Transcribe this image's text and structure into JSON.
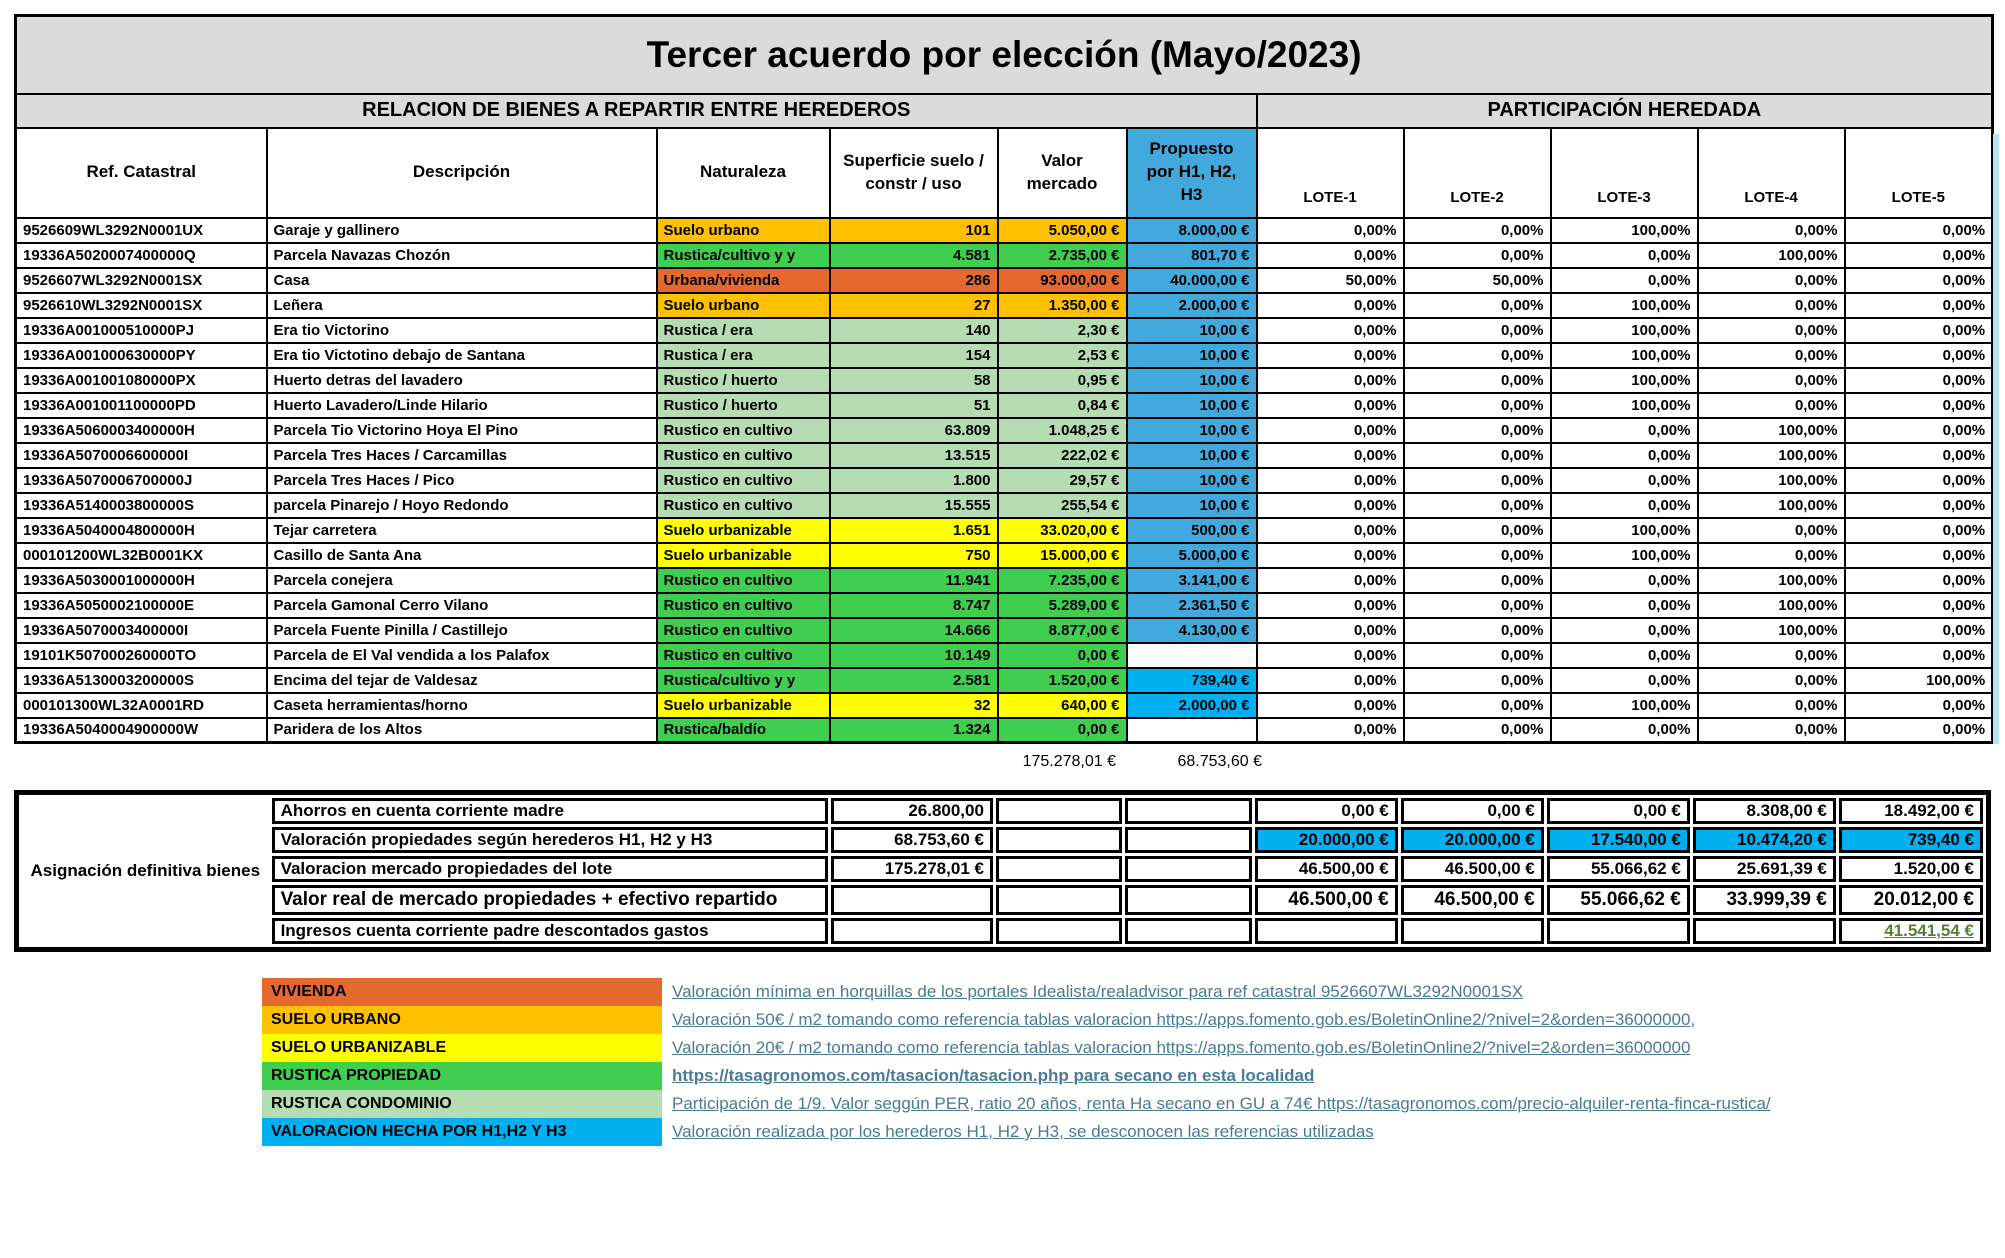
{
  "title": "Tercer acuerdo por elección (Mayo/2023)",
  "sections": {
    "left": "RELACION DE BIENES A REPARTIR ENTRE HEREDEROS",
    "right": "PARTICIPACIÓN HEREDADA"
  },
  "colors": {
    "header_gray": "#dbdbdb",
    "gold": "#ffc000",
    "vivienda": "#e5692e",
    "yellow": "#ffff00",
    "green": "#3fce50",
    "lightgreen": "#b5dcb3",
    "blue": "#41a9dc",
    "brightblue": "#00b0f0",
    "link": "#4a7b94",
    "money_green": "#548235"
  },
  "table": {
    "headers": {
      "ref": "Ref. Catastral",
      "desc": "Descripción",
      "nat": "Naturaleza",
      "sup": "Superficie suelo / constr / uso",
      "valor": "Valor mercado",
      "prop": "Propuesto por H1, H2, H3"
    },
    "lote_headers": [
      "LOTE-1",
      "LOTE-2",
      "LOTE-3",
      "LOTE-4",
      "LOTE-5"
    ],
    "rows": [
      {
        "ref": "9526609WL3292N0001UX",
        "desc": "Garaje y gallinero",
        "nat": "Suelo urbano",
        "color": "gold",
        "sup": "101",
        "valor": "5.050,00 €",
        "prop": "8.000,00 €",
        "prop_style": "blue",
        "lotes": [
          "0,00%",
          "0,00%",
          "100,00%",
          "0,00%",
          "0,00%"
        ]
      },
      {
        "ref": "19336A5020007400000Q",
        "desc": "Parcela Navazas Chozón",
        "nat": "Rustica/cultivo y y",
        "color": "green",
        "sup": "4.581",
        "valor": "2.735,00 €",
        "prop": "801,70 €",
        "prop_style": "blue",
        "lotes": [
          "0,00%",
          "0,00%",
          "0,00%",
          "100,00%",
          "0,00%"
        ]
      },
      {
        "ref": "9526607WL3292N0001SX",
        "desc": "Casa",
        "nat": "Urbana/vivienda",
        "color": "vivienda",
        "sup": "286",
        "valor": "93.000,00 €",
        "prop": "40.000,00 €",
        "prop_style": "blue",
        "lotes": [
          "50,00%",
          "50,00%",
          "0,00%",
          "0,00%",
          "0,00%"
        ]
      },
      {
        "ref": "9526610WL3292N0001SX",
        "desc": "Leñera",
        "nat": "Suelo urbano",
        "color": "gold",
        "sup": "27",
        "valor": "1.350,00 €",
        "prop": "2.000,00 €",
        "prop_style": "blue",
        "lotes": [
          "0,00%",
          "0,00%",
          "100,00%",
          "0,00%",
          "0,00%"
        ]
      },
      {
        "ref": "19336A001000510000PJ",
        "desc": "Era tio Victorino",
        "nat": "Rustica / era",
        "color": "lightgreen",
        "sup": "140",
        "valor": "2,30 €",
        "prop": "10,00 €",
        "prop_style": "blue",
        "lotes": [
          "0,00%",
          "0,00%",
          "100,00%",
          "0,00%",
          "0,00%"
        ]
      },
      {
        "ref": "19336A001000630000PY",
        "desc": "Era tio Victotino debajo de Santana",
        "nat": "Rustica / era",
        "color": "lightgreen",
        "sup": "154",
        "valor": "2,53 €",
        "prop": "10,00 €",
        "prop_style": "blue",
        "lotes": [
          "0,00%",
          "0,00%",
          "100,00%",
          "0,00%",
          "0,00%"
        ]
      },
      {
        "ref": "19336A001001080000PX",
        "desc": "Huerto detras del lavadero",
        "nat": "Rustico / huerto",
        "color": "lightgreen",
        "sup": "58",
        "valor": "0,95 €",
        "prop": "10,00 €",
        "prop_style": "blue",
        "lotes": [
          "0,00%",
          "0,00%",
          "100,00%",
          "0,00%",
          "0,00%"
        ]
      },
      {
        "ref": "19336A001001100000PD",
        "desc": " Huerto Lavadero/Linde Hilario",
        "nat": "Rustico / huerto",
        "color": "lightgreen",
        "sup": "51",
        "valor": "0,84 €",
        "prop": "10,00 €",
        "prop_style": "blue",
        "lotes": [
          "0,00%",
          "0,00%",
          "100,00%",
          "0,00%",
          "0,00%"
        ]
      },
      {
        "ref": "19336A5060003400000H",
        "desc": "Parcela Tio Victorino Hoya El Pino",
        "nat": "Rustico en cultivo",
        "color": "lightgreen",
        "sup": "63.809",
        "valor": "1.048,25 €",
        "prop": "10,00 €",
        "prop_style": "blue",
        "lotes": [
          "0,00%",
          "0,00%",
          "0,00%",
          "100,00%",
          "0,00%"
        ]
      },
      {
        "ref": "19336A5070006600000I",
        "desc": "Parcela Tres Haces / Carcamillas",
        "nat": "Rustico en cultivo",
        "color": "lightgreen",
        "sup": "13.515",
        "valor": "222,02 €",
        "prop": "10,00 €",
        "prop_style": "blue",
        "lotes": [
          "0,00%",
          "0,00%",
          "0,00%",
          "100,00%",
          "0,00%"
        ]
      },
      {
        "ref": "19336A5070006700000J",
        "desc": "Parcela Tres Haces / Pico",
        "nat": "Rustico en cultivo",
        "color": "lightgreen",
        "sup": "1.800",
        "valor": "29,57 €",
        "prop": "10,00 €",
        "prop_style": "blue",
        "lotes": [
          "0,00%",
          "0,00%",
          "0,00%",
          "100,00%",
          "0,00%"
        ]
      },
      {
        "ref": "19336A5140003800000S",
        "desc": "parcela Pinarejo / Hoyo Redondo",
        "nat": "Rustico en cultivo",
        "color": "lightgreen",
        "sup": "15.555",
        "valor": "255,54 €",
        "prop": "10,00 €",
        "prop_style": "blue",
        "lotes": [
          "0,00%",
          "0,00%",
          "0,00%",
          "100,00%",
          "0,00%"
        ]
      },
      {
        "ref": "19336A5040004800000H",
        "desc": "Tejar carretera",
        "nat": "Suelo urbanizable",
        "color": "yellow",
        "sup": "1.651",
        "valor": "33.020,00 €",
        "prop": "500,00 €",
        "prop_style": "blue",
        "lotes": [
          "0,00%",
          "0,00%",
          "100,00%",
          "0,00%",
          "0,00%"
        ]
      },
      {
        "ref": "000101200WL32B0001KX",
        "desc": "Casillo de Santa Ana",
        "nat": "Suelo urbanizable",
        "color": "yellow",
        "sup": "750",
        "valor": "15.000,00 €",
        "prop": "5.000,00 €",
        "prop_style": "blue",
        "lotes": [
          "0,00%",
          "0,00%",
          "100,00%",
          "0,00%",
          "0,00%"
        ]
      },
      {
        "ref": "19336A5030001000000H",
        "desc": "Parcela conejera",
        "nat": "Rustico en cultivo",
        "color": "green",
        "sup": "11.941",
        "valor": "7.235,00 €",
        "prop": "3.141,00 €",
        "prop_style": "blue",
        "lotes": [
          "0,00%",
          "0,00%",
          "0,00%",
          "100,00%",
          "0,00%"
        ]
      },
      {
        "ref": "19336A5050002100000E",
        "desc": "Parcela Gamonal Cerro Vilano",
        "nat": "Rustico en cultivo",
        "color": "green",
        "sup": "8.747",
        "valor": "5.289,00 €",
        "prop": "2.361,50 €",
        "prop_style": "blue",
        "lotes": [
          "0,00%",
          "0,00%",
          "0,00%",
          "100,00%",
          "0,00%"
        ]
      },
      {
        "ref": "19336A5070003400000I",
        "desc": "Parcela Fuente Pinilla / Castillejo",
        "nat": "Rustico en cultivo",
        "color": "green",
        "sup": "14.666",
        "valor": "8.877,00 €",
        "prop": "4.130,00 €",
        "prop_style": "blue",
        "lotes": [
          "0,00%",
          "0,00%",
          "0,00%",
          "100,00%",
          "0,00%"
        ]
      },
      {
        "ref": "19101K507000260000TO",
        "desc": "Parcela de El Val vendida a los Palafox",
        "nat": "Rustico en cultivo",
        "color": "green",
        "sup": "10.149",
        "valor": "0,00 €",
        "prop": "",
        "prop_style": "",
        "lotes": [
          "0,00%",
          "0,00%",
          "0,00%",
          "0,00%",
          "0,00%"
        ]
      },
      {
        "ref": "19336A5130003200000S",
        "desc": "Encima del tejar de Valdesaz",
        "nat": "Rustica/cultivo y y",
        "color": "green",
        "sup": "2.581",
        "valor": "1.520,00 €",
        "prop": "739,40 €",
        "prop_style": "brightblue",
        "lotes": [
          "0,00%",
          "0,00%",
          "0,00%",
          "0,00%",
          "100,00%"
        ]
      },
      {
        "ref": "000101300WL32A0001RD",
        "desc": "Caseta herramientas/horno",
        "nat": "Suelo urbanizable",
        "color": "yellow",
        "sup": "32",
        "valor": "640,00 €",
        "prop": "2.000,00 €",
        "prop_style": "brightblue",
        "lotes": [
          "0,00%",
          "0,00%",
          "100,00%",
          "0,00%",
          "0,00%"
        ]
      },
      {
        "ref": "19336A5040004900000W",
        "desc": "Paridera de los Altos",
        "nat": "Rustica/baldío",
        "color": "green",
        "sup": "1.324",
        "valor": "0,00 €",
        "prop": "",
        "prop_style": "",
        "lotes": [
          "0,00%",
          "0,00%",
          "0,00%",
          "0,00%",
          "0,00%"
        ]
      }
    ],
    "totals": {
      "valor": "175.278,01 €",
      "prop": "68.753,60 €"
    }
  },
  "assignment": {
    "title": "Asignación definitiva bienes",
    "rows": [
      {
        "label": "Ahorros en cuenta corriente madre",
        "value": "26.800,00",
        "lotes": [
          "0,00 €",
          "0,00 €",
          "0,00 €",
          "8.308,00 €",
          "18.492,00 €"
        ],
        "lote_bg": "",
        "big": false,
        "green_last": false
      },
      {
        "label": "Valoración propiedades según herederos H1, H2 y H3",
        "value": "68.753,60 €",
        "lotes": [
          "20.000,00 €",
          "20.000,00 €",
          "17.540,00 €",
          "10.474,20 €",
          "739,40 €"
        ],
        "lote_bg": "brightblue",
        "big": false,
        "green_last": false
      },
      {
        "label": "Valoracion mercado propiedades del lote",
        "value": "175.278,01 €",
        "lotes": [
          "46.500,00 €",
          "46.500,00 €",
          "55.066,62 €",
          "25.691,39 €",
          "1.520,00 €"
        ],
        "lote_bg": "",
        "big": false,
        "green_last": false
      },
      {
        "label": "Valor real de mercado propiedades + efectivo repartido",
        "value": "",
        "lotes": [
          "46.500,00 €",
          "46.500,00 €",
          "55.066,62 €",
          "33.999,39 €",
          "20.012,00 €"
        ],
        "lote_bg": "",
        "big": true,
        "green_last": false
      },
      {
        "label": "Ingresos cuenta corriente padre descontados gastos",
        "value": "",
        "lotes": [
          "",
          "",
          "",
          "",
          "41.541,54 €"
        ],
        "lote_bg": "",
        "big": false,
        "green_last": true
      }
    ]
  },
  "legend": [
    {
      "label": "VIVIENDA",
      "color": "vivienda",
      "note": "Valoración mínima en horquillas de los portales Idealista/realadvisor para ref catastral 9526607WL3292N0001SX",
      "bold": false
    },
    {
      "label": "SUELO URBANO",
      "color": "gold",
      "note": "Valoración 50€ / m2 tomando como referencia tablas valoracion https://apps.fomento.gob.es/BoletinOnline2/?nivel=2&orden=36000000,",
      "bold": false
    },
    {
      "label": "SUELO URBANIZABLE",
      "color": "yellow",
      "note": "Valoración 20€ / m2 tomando como referencia tablas valoracion https://apps.fomento.gob.es/BoletinOnline2/?nivel=2&orden=36000000",
      "bold": false
    },
    {
      "label": "RUSTICA PROPIEDAD",
      "color": "green",
      "note": "https://tasagronomos.com/tasacion/tasacion.php para secano en esta localidad",
      "bold": true
    },
    {
      "label": "RUSTICA CONDOMINIO",
      "color": "lightgreen",
      "note": "Participación de 1/9. Valor seggún PER, ratio 20 años, renta Ha secano en GU a 74€  https://tasagronomos.com/precio-alquiler-renta-finca-rustica/",
      "bold": false
    },
    {
      "label": "VALORACION HECHA POR H1,H2 Y H3",
      "color": "brightblue",
      "note": "Valoración realizada por los herederos H1, H2 y H3, se desconocen las referencias utilizadas",
      "bold": false
    }
  ]
}
